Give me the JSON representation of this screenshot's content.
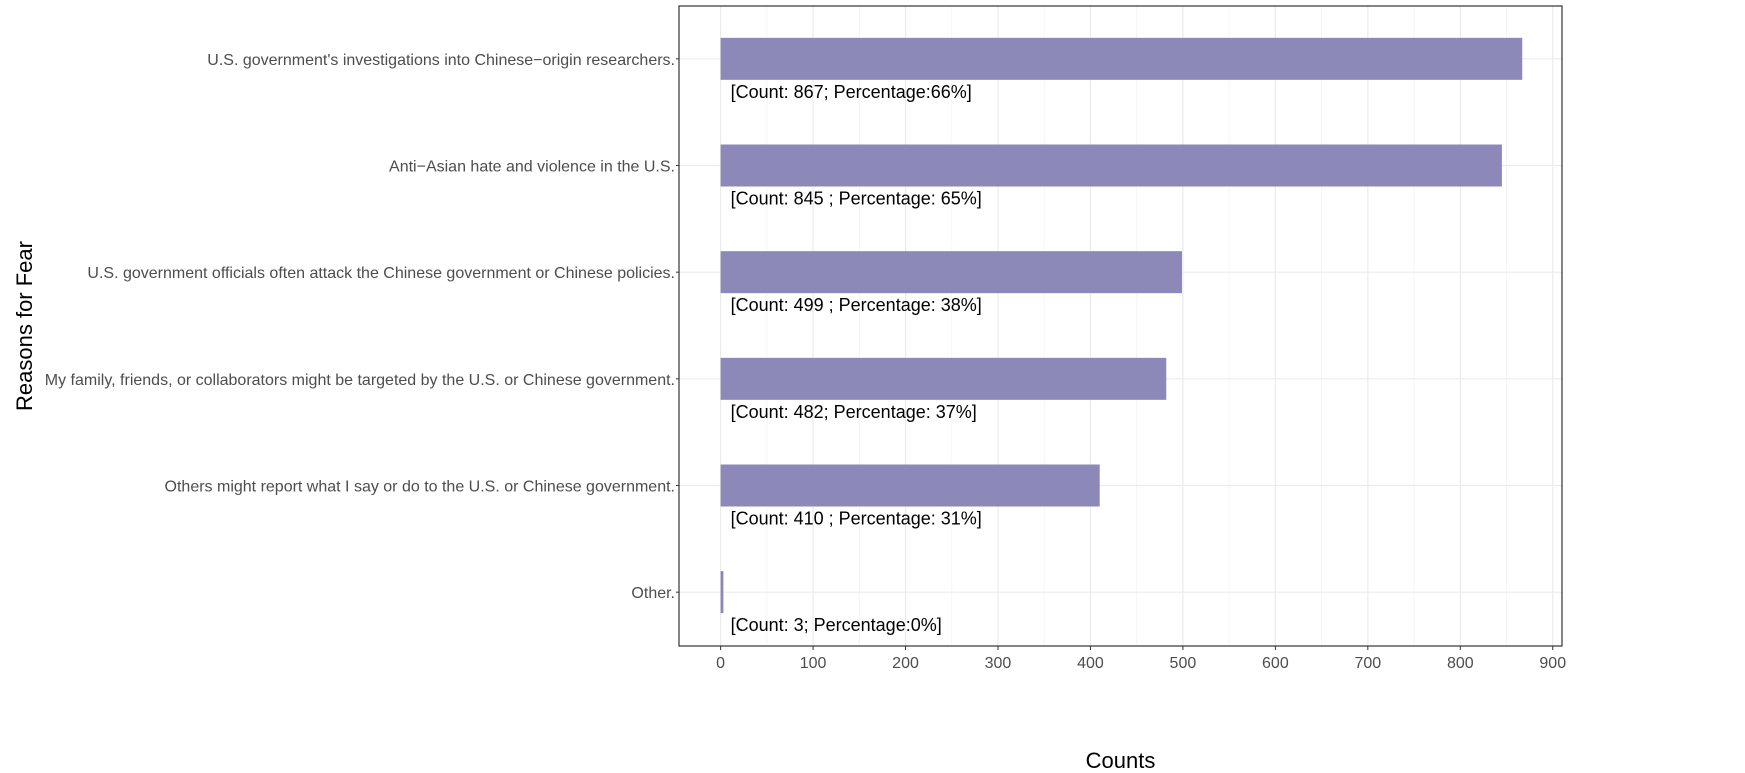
{
  "chart_data": {
    "type": "bar",
    "orientation": "horizontal",
    "categories": [
      "U.S. government's investigations into Chinese−origin researchers.",
      "Anti−Asian hate and violence in the U.S.",
      "U.S. government officials often attack the Chinese government or Chinese policies.",
      "My family, friends, or collaborators might be targeted by the U.S. or Chinese government.",
      "Others might report what I say or do to the U.S. or Chinese government.",
      "Other."
    ],
    "values": [
      867,
      845,
      499,
      482,
      410,
      3
    ],
    "data_labels": [
      "[Count: 867; Percentage:66%]",
      "[Count: 845 ; Percentage: 65%]",
      "[Count: 499 ; Percentage: 38%]",
      "[Count: 482; Percentage: 37%]",
      "[Count: 410 ; Percentage: 31%]",
      "[Count: 3; Percentage:0%]"
    ],
    "xlabel": "Counts",
    "ylabel": "Reasons for Fear",
    "xlim": [
      -45,
      910
    ],
    "xticks": [
      0,
      100,
      200,
      300,
      400,
      500,
      600,
      700,
      800,
      900
    ],
    "grid": true,
    "legend": "none",
    "bar_color": "#8c88b8",
    "grid_color": "#ebebeb",
    "panel_border_color": "#333333"
  }
}
